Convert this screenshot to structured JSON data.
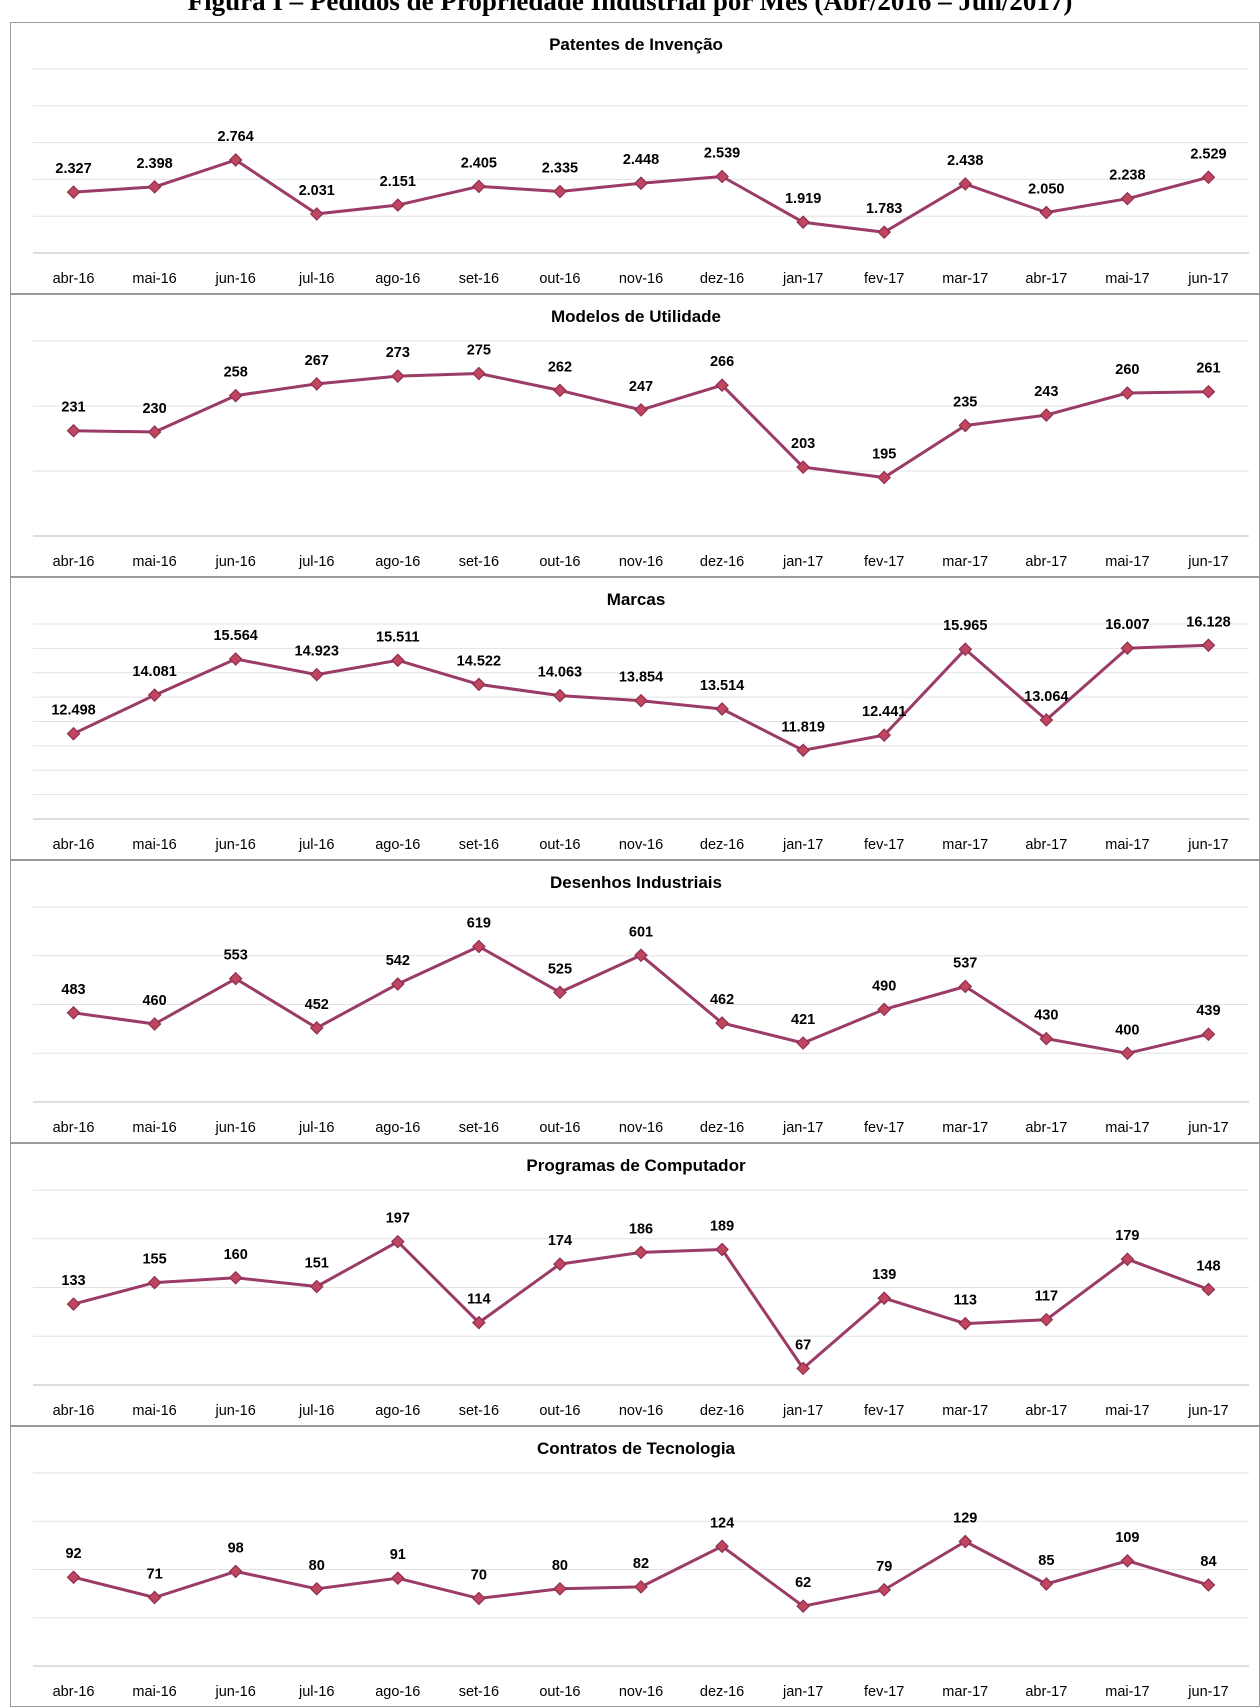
{
  "figure_title": "Figura I – Pedidos de Propriedade Industrial por Mês (Abr/2016 – Jun/2017)",
  "style": {
    "line_color": "#9b3b67",
    "marker_color": "#c0455f"
  },
  "chart_data": [
    {
      "type": "line",
      "title": "Patentes de Invenção",
      "categories": [
        "abr-16",
        "mai-16",
        "jun-16",
        "jul-16",
        "ago-16",
        "set-16",
        "out-16",
        "nov-16",
        "dez-16",
        "jan-17",
        "fev-17",
        "mar-17",
        "abr-17",
        "mai-17",
        "jun-17"
      ],
      "values": [
        2327,
        2398,
        2764,
        2031,
        2151,
        2405,
        2335,
        2448,
        2539,
        1919,
        1783,
        2438,
        2050,
        2238,
        2529
      ],
      "labels": [
        "2.327",
        "2.398",
        "2.764",
        "2.031",
        "2.151",
        "2.405",
        "2.335",
        "2.448",
        "2.539",
        "1.919",
        "1.783",
        "2.438",
        "2.050",
        "2.238",
        "2.529"
      ],
      "ylim": [
        1500,
        4000
      ],
      "grid_step": 500,
      "grid": true
    },
    {
      "type": "line",
      "title": "Modelos de Utilidade",
      "categories": [
        "abr-16",
        "mai-16",
        "jun-16",
        "jul-16",
        "ago-16",
        "set-16",
        "out-16",
        "nov-16",
        "dez-16",
        "jan-17",
        "fev-17",
        "mar-17",
        "abr-17",
        "mai-17",
        "jun-17"
      ],
      "values": [
        231,
        230,
        258,
        267,
        273,
        275,
        262,
        247,
        266,
        203,
        195,
        235,
        243,
        260,
        261
      ],
      "labels": [
        "231",
        "230",
        "258",
        "267",
        "273",
        "275",
        "262",
        "247",
        "266",
        "203",
        "195",
        "235",
        "243",
        "260",
        "261"
      ],
      "ylim": [
        150,
        300
      ],
      "grid_step": 50,
      "grid": true
    },
    {
      "type": "line",
      "title": "Marcas",
      "categories": [
        "abr-16",
        "mai-16",
        "jun-16",
        "jul-16",
        "ago-16",
        "set-16",
        "out-16",
        "nov-16",
        "dez-16",
        "jan-17",
        "fev-17",
        "mar-17",
        "abr-17",
        "mai-17",
        "jun-17"
      ],
      "values": [
        12498,
        14081,
        15564,
        14923,
        15511,
        14522,
        14063,
        13854,
        13514,
        11819,
        12441,
        15965,
        13064,
        16007,
        16128
      ],
      "labels": [
        "12.498",
        "14.081",
        "15.564",
        "14.923",
        "15.511",
        "14.522",
        "14.063",
        "13.854",
        "13.514",
        "11.819",
        "12.441",
        "15.965",
        "13.064",
        "16.007",
        "16.128"
      ],
      "ylim": [
        9000,
        17000
      ],
      "grid_step": 1000,
      "grid": true
    },
    {
      "type": "line",
      "title": "Desenhos Industriais",
      "categories": [
        "abr-16",
        "mai-16",
        "jun-16",
        "jul-16",
        "ago-16",
        "set-16",
        "out-16",
        "nov-16",
        "dez-16",
        "jan-17",
        "fev-17",
        "mar-17",
        "abr-17",
        "mai-17",
        "jun-17"
      ],
      "values": [
        483,
        460,
        553,
        452,
        542,
        619,
        525,
        601,
        462,
        421,
        490,
        537,
        430,
        400,
        439
      ],
      "labels": [
        "483",
        "460",
        "553",
        "452",
        "542",
        "619",
        "525",
        "601",
        "462",
        "421",
        "490",
        "537",
        "430",
        "400",
        "439"
      ],
      "ylim": [
        300,
        700
      ],
      "grid_step": 100,
      "grid": true
    },
    {
      "type": "line",
      "title": "Programas de Computador",
      "categories": [
        "abr-16",
        "mai-16",
        "jun-16",
        "jul-16",
        "ago-16",
        "set-16",
        "out-16",
        "nov-16",
        "dez-16",
        "jan-17",
        "fev-17",
        "mar-17",
        "abr-17",
        "mai-17",
        "jun-17"
      ],
      "values": [
        133,
        155,
        160,
        151,
        197,
        114,
        174,
        186,
        189,
        67,
        139,
        113,
        117,
        179,
        148
      ],
      "labels": [
        "133",
        "155",
        "160",
        "151",
        "197",
        "114",
        "174",
        "186",
        "189",
        "67",
        "139",
        "113",
        "117",
        "179",
        "148"
      ],
      "ylim": [
        50,
        250
      ],
      "grid_step": 50,
      "grid": true
    },
    {
      "type": "line",
      "title": "Contratos de Tecnologia",
      "categories": [
        "abr-16",
        "mai-16",
        "jun-16",
        "jul-16",
        "ago-16",
        "set-16",
        "out-16",
        "nov-16",
        "dez-16",
        "jan-17",
        "fev-17",
        "mar-17",
        "abr-17",
        "mai-17",
        "jun-17"
      ],
      "values": [
        92,
        71,
        98,
        80,
        91,
        70,
        80,
        82,
        124,
        62,
        79,
        129,
        85,
        109,
        84
      ],
      "labels": [
        "92",
        "71",
        "98",
        "80",
        "91",
        "70",
        "80",
        "82",
        "124",
        "62",
        "79",
        "129",
        "85",
        "109",
        "84"
      ],
      "ylim": [
        0,
        200
      ],
      "grid_step": 50,
      "grid": true
    }
  ]
}
